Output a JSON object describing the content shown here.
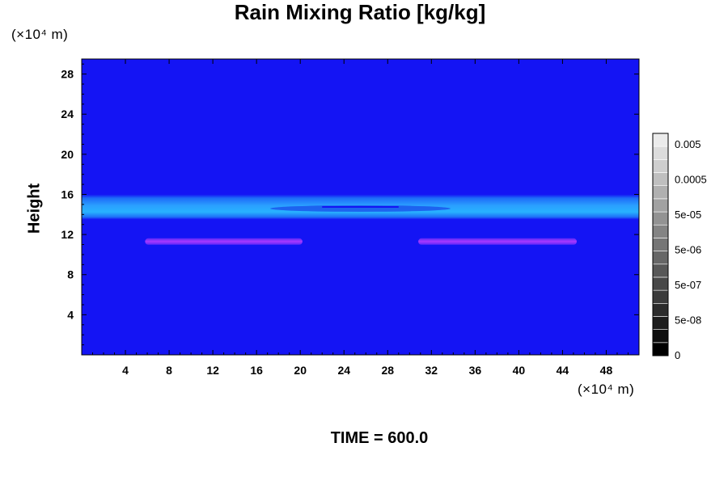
{
  "chart_data": {
    "type": "heatmap",
    "title": "Rain Mixing Ratio [kg/kg]",
    "ylabel": "Height",
    "y_unit": "(×10⁴ m)",
    "x_unit": "(×10⁴ m)",
    "footer": "TIME = 600.0",
    "xlim": [
      0,
      51
    ],
    "ylim": [
      0,
      29.5
    ],
    "x_ticks": [
      4,
      8,
      12,
      16,
      20,
      24,
      28,
      32,
      36,
      40,
      44,
      48
    ],
    "y_ticks": [
      4,
      8,
      12,
      16,
      20,
      24,
      28
    ],
    "x_tick_labels": [
      "4",
      "8",
      "12",
      "16",
      "20",
      "24",
      "28",
      "32",
      "36",
      "40",
      "44",
      "48"
    ],
    "y_tick_labels": [
      "4",
      "8",
      "12",
      "16",
      "20",
      "24",
      "28"
    ],
    "background_color": "#1414f4",
    "features": [
      {
        "kind": "band",
        "y_from": 13.5,
        "y_to": 16.0,
        "color": "#2aa0ff"
      },
      {
        "kind": "streak",
        "x_from": 5.8,
        "x_to": 20.2,
        "y": 11.3,
        "color": "#9b30ff"
      },
      {
        "kind": "streak",
        "x_from": 30.8,
        "x_to": 45.3,
        "y": 11.3,
        "color": "#9b30ff"
      }
    ],
    "colorbar": {
      "labels": [
        "0.005",
        "0.0005",
        "5e-05",
        "5e-06",
        "5e-07",
        "5e-08",
        "0"
      ],
      "levels": 17,
      "color_low": "#000000",
      "color_high": "#ffffff"
    }
  }
}
